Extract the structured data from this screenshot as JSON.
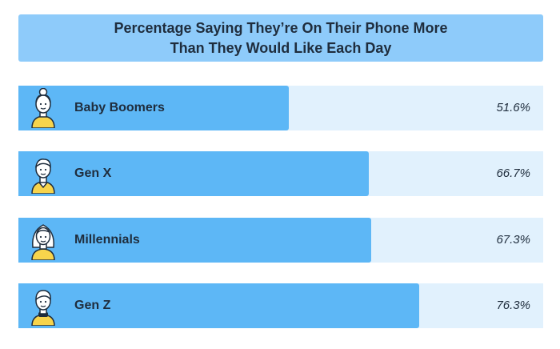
{
  "chart_data": {
    "type": "bar",
    "orientation": "horizontal",
    "title_lines": [
      "Percentage Saying They’re On Their Phone More",
      "Than They Would Like Each Day"
    ],
    "categories": [
      "Baby Boomers",
      "Gen X",
      "Millennials",
      "Gen Z"
    ],
    "values": [
      51.6,
      66.7,
      67.3,
      76.3
    ],
    "value_labels": [
      "51.6%",
      "66.7%",
      "67.3%",
      "76.3%"
    ],
    "icons": [
      "boomer-avatar-icon",
      "gen-x-avatar-icon",
      "millennial-avatar-icon",
      "gen-z-avatar-icon"
    ],
    "xlim": [
      0,
      100
    ],
    "unit": "%",
    "grid": false,
    "colors": {
      "title_bg": "#8ecbfa",
      "bar": "#5db7f6",
      "track": "#e1f1fd",
      "text": "#1f2d3d",
      "avatar_shirt": "#f7d44c"
    }
  }
}
